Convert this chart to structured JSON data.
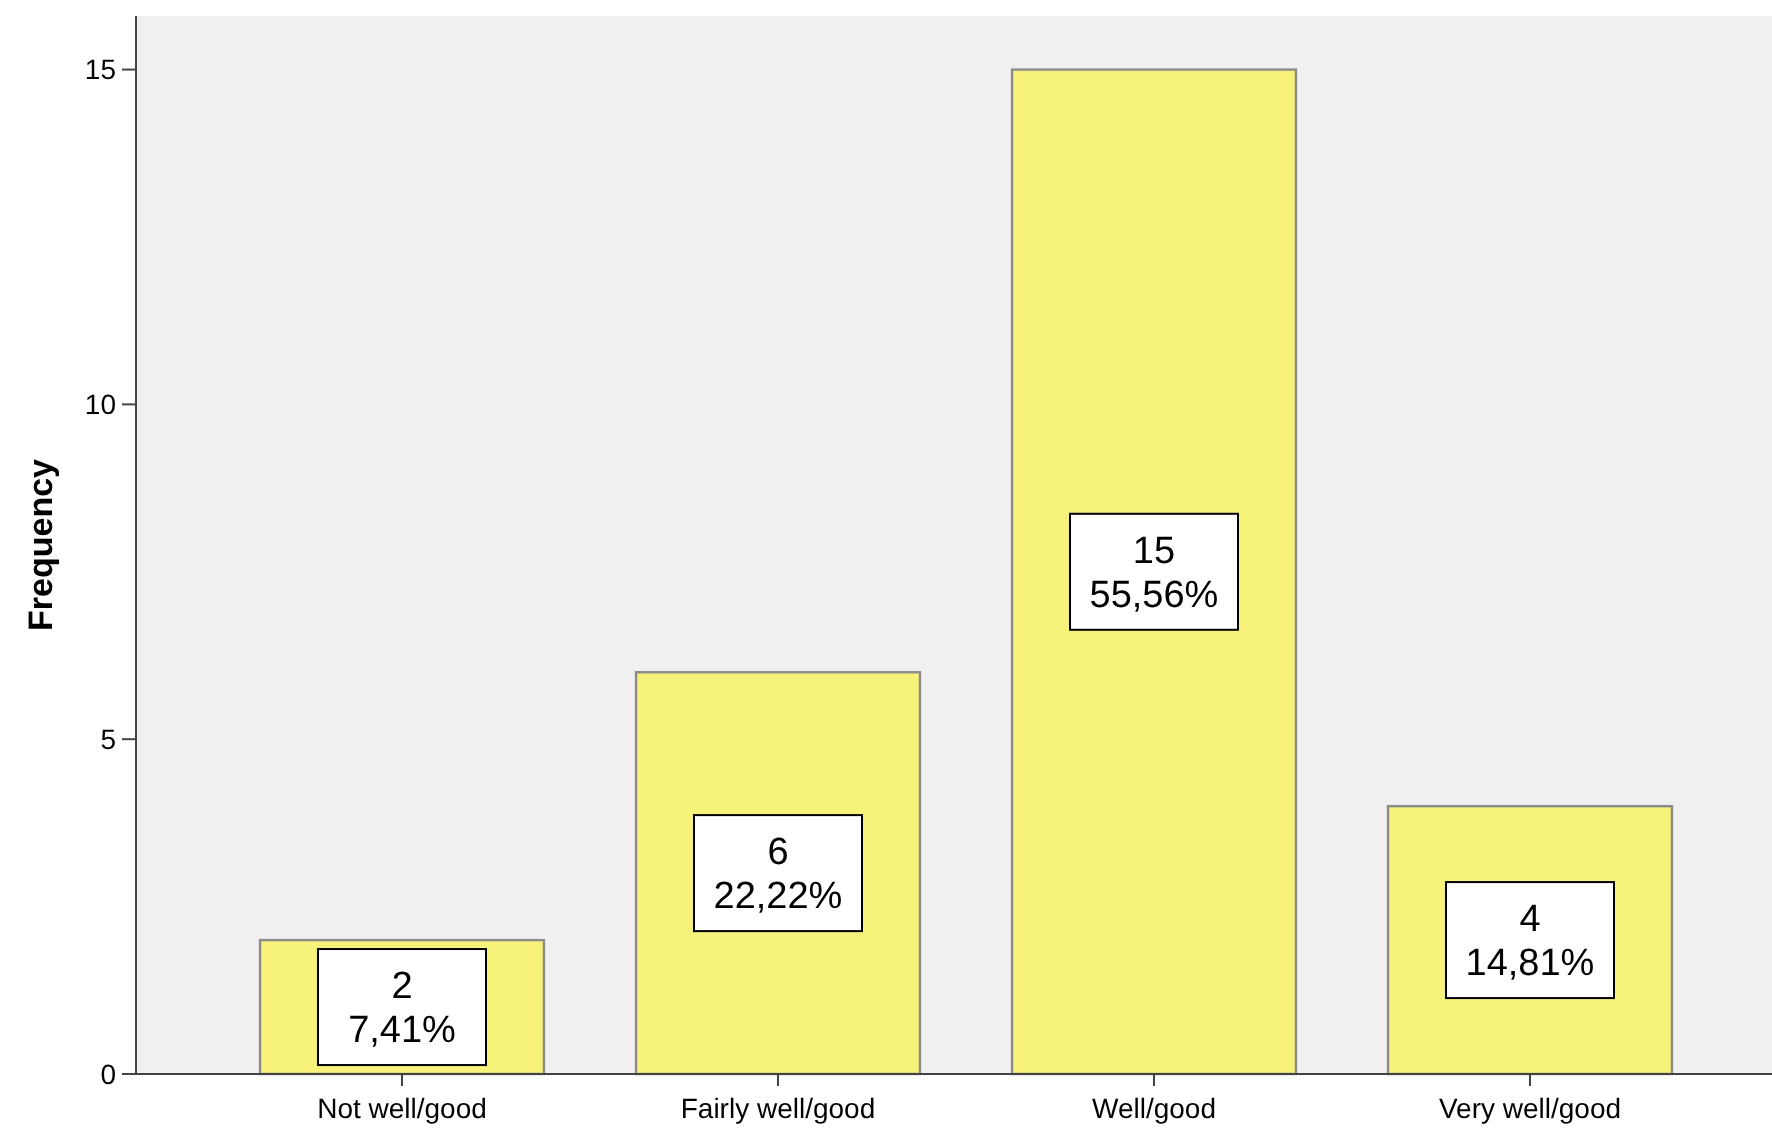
{
  "chart_data": {
    "type": "bar",
    "ylabel": "Frequency",
    "categories": [
      "Not well/good",
      "Fairly well/good",
      "Well/good",
      "Very well/good"
    ],
    "values": [
      2,
      6,
      15,
      4
    ],
    "value_labels": [
      "2\n7,41%",
      "6\n22,22%",
      "15\n55,56%",
      "4\n14,81%"
    ],
    "color": "#f7f27a",
    "ylim": [
      0,
      15.8
    ],
    "yticks": [
      0,
      5,
      10,
      15
    ]
  }
}
